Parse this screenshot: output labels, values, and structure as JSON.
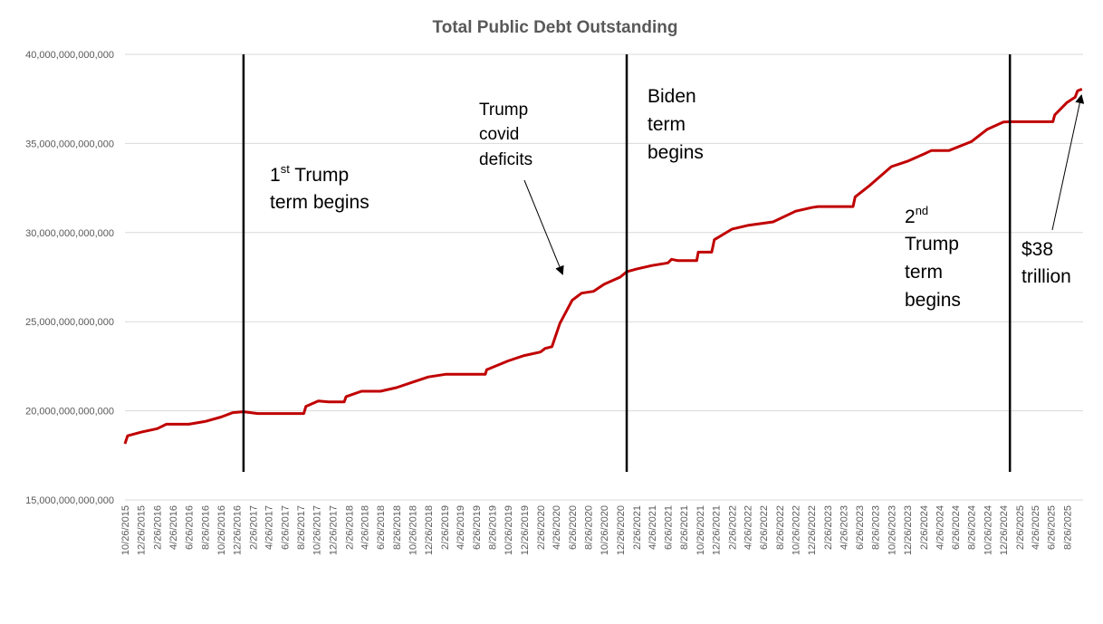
{
  "chart_data": {
    "type": "line",
    "title": "Total Public Debt Outstanding",
    "xlabel": "",
    "ylabel": "",
    "ylim": [
      15000000000000,
      40000000000000
    ],
    "y_ticks": [
      "15,000,000,000,000",
      "20,000,000,000,000",
      "25,000,000,000,000",
      "30,000,000,000,000",
      "35,000,000,000,000",
      "40,000,000,000,000"
    ],
    "y_tick_values": [
      15000000000000,
      20000000000000,
      25000000000000,
      30000000000000,
      35000000000000,
      40000000000000
    ],
    "x_tick_labels": [
      "10/26/2015",
      "12/26/2015",
      "2/26/2016",
      "4/26/2016",
      "6/26/2016",
      "8/26/2016",
      "10/26/2016",
      "12/26/2016",
      "2/26/2017",
      "4/26/2017",
      "6/26/2017",
      "8/26/2017",
      "10/26/2017",
      "12/26/2017",
      "2/26/2018",
      "4/26/2018",
      "6/26/2018",
      "8/26/2018",
      "10/26/2018",
      "12/26/2018",
      "2/26/2019",
      "4/26/2019",
      "6/26/2019",
      "8/26/2019",
      "10/26/2019",
      "12/26/2019",
      "2/26/2020",
      "4/26/2020",
      "6/26/2020",
      "8/26/2020",
      "10/26/2020",
      "12/26/2020",
      "2/26/2021",
      "4/26/2021",
      "6/26/2021",
      "8/26/2021",
      "10/26/2021",
      "12/26/2021",
      "2/26/2022",
      "4/26/2022",
      "6/26/2022",
      "8/26/2022",
      "10/26/2022",
      "12/26/2022",
      "2/26/2023",
      "4/26/2023",
      "6/26/2023",
      "8/26/2023",
      "10/26/2023",
      "12/26/2023",
      "2/26/2024",
      "4/26/2024",
      "6/26/2024",
      "8/26/2024",
      "10/26/2024",
      "12/26/2024",
      "2/26/2025",
      "4/26/2025",
      "6/26/2025",
      "8/26/2025"
    ],
    "grid": true,
    "series": [
      {
        "name": "",
        "color": "#C00000",
        "points": [
          [
            "2015-10-26",
            18150000000000
          ],
          [
            "2015-11-05",
            18600000000000
          ],
          [
            "2015-12-26",
            18800000000000
          ],
          [
            "2016-02-26",
            19000000000000
          ],
          [
            "2016-04-01",
            19250000000000
          ],
          [
            "2016-06-26",
            19250000000000
          ],
          [
            "2016-08-26",
            19400000000000
          ],
          [
            "2016-10-26",
            19650000000000
          ],
          [
            "2016-12-10",
            19900000000000
          ],
          [
            "2017-01-20",
            19950000000000
          ],
          [
            "2017-03-15",
            19850000000000
          ],
          [
            "2017-09-07",
            19850000000000
          ],
          [
            "2017-09-15",
            20250000000000
          ],
          [
            "2017-11-01",
            20550000000000
          ],
          [
            "2017-12-10",
            20500000000000
          ],
          [
            "2018-02-08",
            20500000000000
          ],
          [
            "2018-02-15",
            20800000000000
          ],
          [
            "2018-04-15",
            21100000000000
          ],
          [
            "2018-06-26",
            21100000000000
          ],
          [
            "2018-08-26",
            21300000000000
          ],
          [
            "2018-10-26",
            21600000000000
          ],
          [
            "2018-12-26",
            21900000000000
          ],
          [
            "2019-03-01",
            22050000000000
          ],
          [
            "2019-07-31",
            22050000000000
          ],
          [
            "2019-08-05",
            22300000000000
          ],
          [
            "2019-10-26",
            22800000000000
          ],
          [
            "2019-12-26",
            23100000000000
          ],
          [
            "2020-02-26",
            23300000000000
          ],
          [
            "2020-03-15",
            23500000000000
          ],
          [
            "2020-04-10",
            23600000000000
          ],
          [
            "2020-05-10",
            24900000000000
          ],
          [
            "2020-06-26",
            26200000000000
          ],
          [
            "2020-08-01",
            26600000000000
          ],
          [
            "2020-09-15",
            26700000000000
          ],
          [
            "2020-10-26",
            27100000000000
          ],
          [
            "2020-12-26",
            27500000000000
          ],
          [
            "2021-01-20",
            27800000000000
          ],
          [
            "2021-02-26",
            27950000000000
          ],
          [
            "2021-04-26",
            28150000000000
          ],
          [
            "2021-06-26",
            28300000000000
          ],
          [
            "2021-07-10",
            28500000000000
          ],
          [
            "2021-08-01",
            28430000000000
          ],
          [
            "2021-10-14",
            28430000000000
          ],
          [
            "2021-10-20",
            28900000000000
          ],
          [
            "2021-12-10",
            28900000000000
          ],
          [
            "2021-12-20",
            29600000000000
          ],
          [
            "2022-02-26",
            30200000000000
          ],
          [
            "2022-04-26",
            30400000000000
          ],
          [
            "2022-08-01",
            30600000000000
          ],
          [
            "2022-10-26",
            31200000000000
          ],
          [
            "2022-12-26",
            31400000000000
          ],
          [
            "2023-01-19",
            31460000000000
          ],
          [
            "2023-06-02",
            31460000000000
          ],
          [
            "2023-06-10",
            32000000000000
          ],
          [
            "2023-08-01",
            32600000000000
          ],
          [
            "2023-10-26",
            33700000000000
          ],
          [
            "2023-12-26",
            34000000000000
          ],
          [
            "2024-02-26",
            34400000000000
          ],
          [
            "2024-03-26",
            34600000000000
          ],
          [
            "2024-06-01",
            34600000000000
          ],
          [
            "2024-08-26",
            35100000000000
          ],
          [
            "2024-10-26",
            35800000000000
          ],
          [
            "2024-12-26",
            36200000000000
          ],
          [
            "2025-01-20",
            36220000000000
          ],
          [
            "2025-07-03",
            36220000000000
          ],
          [
            "2025-07-10",
            36600000000000
          ],
          [
            "2025-08-26",
            37300000000000
          ],
          [
            "2025-09-26",
            37600000000000
          ],
          [
            "2025-10-05",
            37950000000000
          ],
          [
            "2025-10-22",
            38050000000000
          ]
        ]
      }
    ],
    "events": [
      {
        "date": "2017-01-20"
      },
      {
        "date": "2021-01-20"
      },
      {
        "date": "2025-01-20"
      }
    ],
    "annotations": {
      "trump1_line1_pre": "1",
      "trump1_line1_sup": "st",
      "trump1_line1_post": " Trump",
      "trump1_line2": "term begins",
      "covid_line1": "Trump",
      "covid_line2": "covid",
      "covid_line3": "deficits",
      "biden_line1": "Biden",
      "biden_line2": "term",
      "biden_line3": "begins",
      "trump2_line1_pre": "2",
      "trump2_line1_sup": "nd",
      "trump2_line2": "Trump",
      "trump2_line3": "term",
      "trump2_line4": "begins",
      "debt38_line1": "$38",
      "debt38_line2": "trillion"
    }
  }
}
